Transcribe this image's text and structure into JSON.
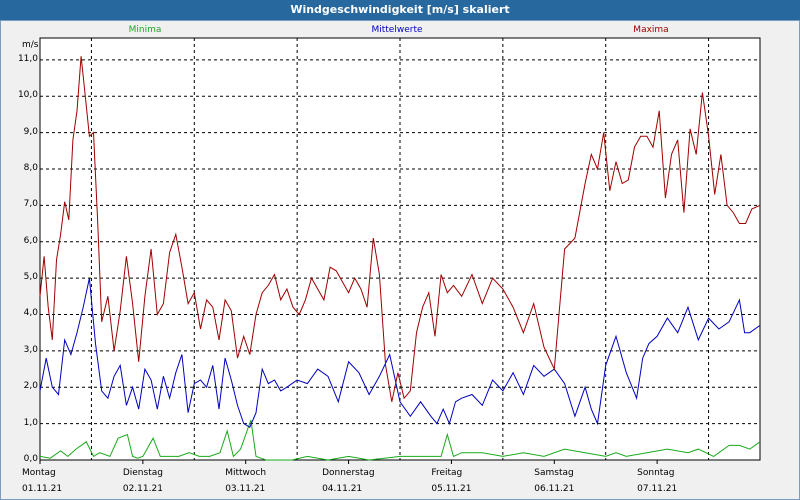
{
  "window": {
    "title": "Windgeschwindigkeit [m/s] skaliert"
  },
  "chart_data": {
    "type": "line",
    "ylabel": "m/s",
    "ylim": [
      0,
      11.6
    ],
    "yticks": [
      "0,0",
      "1,0",
      "2,0",
      "3,0",
      "4,0",
      "5,0",
      "6,0",
      "7,0",
      "8,0",
      "9,0",
      "10,0",
      "11,0"
    ],
    "xlim": [
      0,
      7
    ],
    "xticks": [
      {
        "day": "Montag",
        "date": "01.11.21"
      },
      {
        "day": "Dienstag",
        "date": "02.11.21"
      },
      {
        "day": "Mittwoch",
        "date": "03.11.21"
      },
      {
        "day": "Donnerstag",
        "date": "04.11.21"
      },
      {
        "day": "Freitag",
        "date": "05.11.21"
      },
      {
        "day": "Samstag",
        "date": "06.11.21"
      },
      {
        "day": "Sonntag",
        "date": "07.11.21"
      }
    ],
    "grid": true,
    "legend_position": "top",
    "series": [
      {
        "name": "Minima",
        "color": "#1aaa1a",
        "x": [
          0,
          0.1,
          0.2,
          0.27,
          0.35,
          0.45,
          0.52,
          0.58,
          0.68,
          0.76,
          0.85,
          0.9,
          0.95,
          1.0,
          1.1,
          1.17,
          1.25,
          1.35,
          1.45,
          1.55,
          1.65,
          1.75,
          1.82,
          1.88,
          1.95,
          2.05,
          2.1,
          2.15,
          2.2,
          2.3,
          2.45,
          2.6,
          2.8,
          3.0,
          3.2,
          3.5,
          3.8,
          3.9,
          3.96,
          4.02,
          4.1,
          4.3,
          4.5,
          4.7,
          4.9,
          5.1,
          5.3,
          5.5,
          5.6,
          5.7,
          5.9,
          6.1,
          6.3,
          6.4,
          6.55,
          6.7,
          6.8,
          6.9,
          7.0
        ],
        "values": [
          0.1,
          0.05,
          0.25,
          0.1,
          0.3,
          0.5,
          0.1,
          0.2,
          0.1,
          0.6,
          0.7,
          0.1,
          0.05,
          0.1,
          0.6,
          0.1,
          0.1,
          0.1,
          0.2,
          0.1,
          0.1,
          0.2,
          0.8,
          0.1,
          0.3,
          1.1,
          0.1,
          0.05,
          0.0,
          0.0,
          0.0,
          0.1,
          0.0,
          0.1,
          0.0,
          0.1,
          0.1,
          0.1,
          0.7,
          0.1,
          0.2,
          0.2,
          0.1,
          0.2,
          0.1,
          0.3,
          0.2,
          0.1,
          0.2,
          0.1,
          0.2,
          0.3,
          0.2,
          0.3,
          0.1,
          0.4,
          0.4,
          0.3,
          0.5
        ]
      },
      {
        "name": "Mittelwerte",
        "color": "#0000c0",
        "x": [
          0,
          0.06,
          0.12,
          0.18,
          0.24,
          0.3,
          0.36,
          0.42,
          0.48,
          0.54,
          0.6,
          0.66,
          0.72,
          0.78,
          0.84,
          0.9,
          0.96,
          1.02,
          1.08,
          1.14,
          1.2,
          1.26,
          1.32,
          1.38,
          1.44,
          1.5,
          1.56,
          1.62,
          1.68,
          1.74,
          1.8,
          1.86,
          1.92,
          1.98,
          2.04,
          2.1,
          2.16,
          2.22,
          2.28,
          2.34,
          2.4,
          2.5,
          2.6,
          2.7,
          2.8,
          2.9,
          3.0,
          3.1,
          3.2,
          3.3,
          3.4,
          3.5,
          3.6,
          3.7,
          3.8,
          3.86,
          3.92,
          3.98,
          4.04,
          4.1,
          4.2,
          4.3,
          4.4,
          4.5,
          4.6,
          4.7,
          4.8,
          4.9,
          5.0,
          5.1,
          5.2,
          5.3,
          5.36,
          5.42,
          5.5,
          5.6,
          5.7,
          5.8,
          5.86,
          5.92,
          6.0,
          6.1,
          6.2,
          6.3,
          6.4,
          6.5,
          6.6,
          6.7,
          6.8,
          6.85,
          6.9,
          7.0
        ],
        "values": [
          1.9,
          2.8,
          2.0,
          1.8,
          3.3,
          2.9,
          3.5,
          4.2,
          5.0,
          3.2,
          1.9,
          1.7,
          2.3,
          2.6,
          1.5,
          2.0,
          1.4,
          2.5,
          2.2,
          1.4,
          2.3,
          1.7,
          2.4,
          2.9,
          1.3,
          2.1,
          2.2,
          2.0,
          2.6,
          1.4,
          2.8,
          2.2,
          1.5,
          1.0,
          0.9,
          1.3,
          2.5,
          2.1,
          2.2,
          1.9,
          2.0,
          2.2,
          2.1,
          2.5,
          2.3,
          1.6,
          2.7,
          2.4,
          1.8,
          2.3,
          2.9,
          1.6,
          1.2,
          1.6,
          1.2,
          1.0,
          1.4,
          1.0,
          1.6,
          1.7,
          1.8,
          1.5,
          2.2,
          1.9,
          2.4,
          1.8,
          2.6,
          2.3,
          2.5,
          2.1,
          1.2,
          2.0,
          1.4,
          1.0,
          2.6,
          3.4,
          2.4,
          1.7,
          2.8,
          3.2,
          3.4,
          3.9,
          3.5,
          4.2,
          3.3,
          3.9,
          3.6,
          3.8,
          4.4,
          3.5,
          3.5,
          3.7
        ]
      },
      {
        "name": "Maxima",
        "color": "#a00000",
        "x": [
          0,
          0.04,
          0.08,
          0.12,
          0.16,
          0.2,
          0.24,
          0.28,
          0.32,
          0.36,
          0.4,
          0.44,
          0.48,
          0.52,
          0.56,
          0.6,
          0.66,
          0.72,
          0.78,
          0.84,
          0.9,
          0.96,
          1.02,
          1.08,
          1.14,
          1.2,
          1.26,
          1.32,
          1.38,
          1.44,
          1.5,
          1.56,
          1.62,
          1.68,
          1.74,
          1.8,
          1.86,
          1.92,
          1.98,
          2.04,
          2.1,
          2.16,
          2.22,
          2.28,
          2.34,
          2.4,
          2.46,
          2.52,
          2.58,
          2.64,
          2.7,
          2.76,
          2.82,
          2.88,
          2.94,
          3.0,
          3.06,
          3.12,
          3.18,
          3.24,
          3.3,
          3.36,
          3.42,
          3.48,
          3.54,
          3.6,
          3.66,
          3.72,
          3.78,
          3.84,
          3.9,
          3.96,
          4.02,
          4.1,
          4.2,
          4.3,
          4.4,
          4.5,
          4.6,
          4.7,
          4.8,
          4.9,
          5.0,
          5.1,
          5.2,
          5.3,
          5.36,
          5.42,
          5.48,
          5.54,
          5.6,
          5.66,
          5.72,
          5.78,
          5.84,
          5.9,
          5.96,
          6.02,
          6.08,
          6.14,
          6.2,
          6.26,
          6.32,
          6.38,
          6.44,
          6.5,
          6.56,
          6.62,
          6.68,
          6.74,
          6.8,
          6.86,
          6.92,
          7.0
        ],
        "values": [
          4.5,
          5.6,
          4.2,
          3.3,
          5.5,
          6.2,
          7.1,
          6.6,
          8.8,
          9.6,
          11.1,
          10.0,
          8.9,
          9.0,
          6.6,
          3.8,
          4.5,
          3.0,
          4.1,
          5.6,
          4.3,
          2.7,
          4.5,
          5.8,
          4.0,
          4.3,
          5.7,
          6.2,
          5.3,
          4.3,
          4.6,
          3.6,
          4.4,
          4.2,
          3.3,
          4.4,
          4.1,
          2.8,
          3.4,
          2.9,
          4.0,
          4.6,
          4.8,
          5.1,
          4.4,
          4.7,
          4.2,
          4.0,
          4.4,
          5.0,
          4.7,
          4.4,
          5.3,
          5.2,
          4.9,
          4.6,
          5.0,
          4.7,
          4.2,
          6.1,
          5.1,
          2.6,
          1.6,
          2.4,
          1.7,
          1.9,
          3.5,
          4.2,
          4.6,
          3.4,
          5.1,
          4.6,
          4.8,
          4.5,
          5.1,
          4.3,
          5.0,
          4.7,
          4.2,
          3.5,
          4.3,
          3.1,
          2.5,
          5.8,
          6.1,
          7.6,
          8.4,
          8.0,
          9.0,
          7.4,
          8.2,
          7.6,
          7.7,
          8.6,
          8.9,
          8.9,
          8.6,
          9.6,
          7.2,
          8.4,
          8.8,
          6.8,
          9.1,
          8.4,
          10.1,
          8.9,
          7.3,
          8.4,
          7.0,
          6.8,
          6.5,
          6.5,
          6.9,
          7.0
        ]
      }
    ]
  }
}
